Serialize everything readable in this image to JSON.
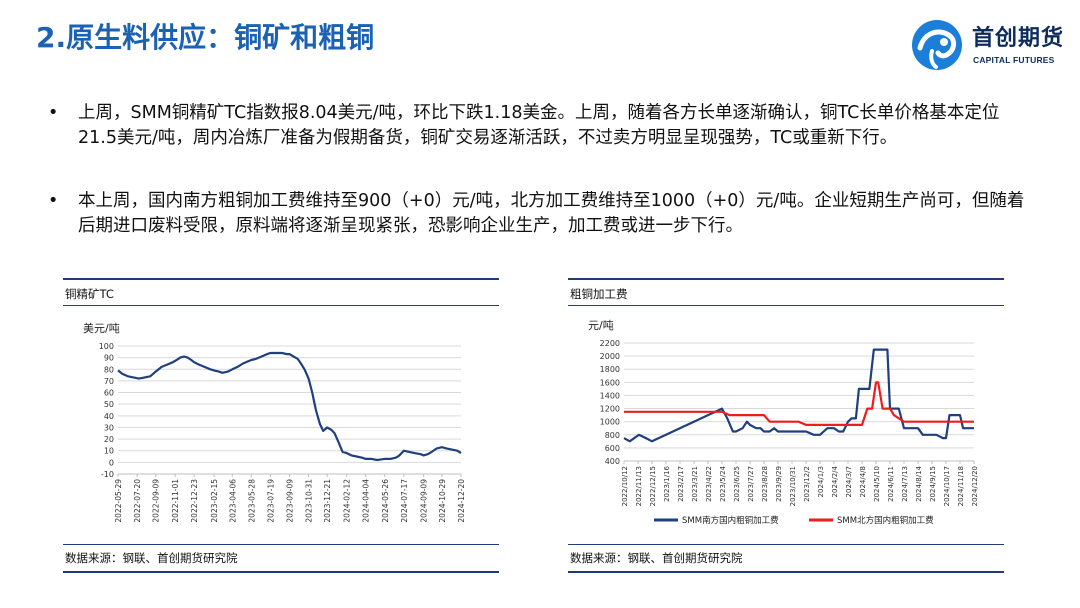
{
  "header": {
    "title": "2.原生料供应：铜矿和粗铜",
    "logo_cn": "首创期货",
    "logo_en": "CAPITAL FUTURES"
  },
  "bullets": [
    {
      "marker": "•",
      "text": "上周，SMM铜精矿TC指数报8.04美元/吨，环比下跌1.18美金。上周，随着各方长单逐渐确认，铜TC长单价格基本定位21.5美元/吨，周内冶炼厂准备为假期备货，铜矿交易逐渐活跃，不过卖方明显呈现强势，TC或重新下行。"
    },
    {
      "marker": "•",
      "text": "本上周，国内南方粗铜加工费维持至900（+0）元/吨，北方加工费维持至1000（+0）元/吨。企业短期生产尚可，但随着后期进口废料受限，原料端将逐渐呈现紧张，恐影响企业生产，加工费或进一步下行。"
    }
  ],
  "panels": {
    "left": {
      "title": "铜精矿TC",
      "source": "数据来源：钢联、首创期货研究院"
    },
    "right": {
      "title": "粗铜加工费",
      "source": "数据来源：钢联、首创期货研究院"
    }
  },
  "colors": {
    "title_blue": "#1b61b4",
    "rule_navy": "#1f3b7a",
    "series_navy": "#1f3f7f",
    "series_red": "#ee1c1c",
    "logo_blue": "#1b7fd9"
  },
  "chart_data": [
    {
      "type": "line",
      "title": "铜精矿TC",
      "ylabel": "美元/吨",
      "ylim": [
        -10,
        100
      ],
      "yticks": [
        -10,
        0,
        10,
        20,
        30,
        40,
        50,
        60,
        70,
        80,
        90,
        100
      ],
      "xlim": [
        "2022-05-29",
        "2024-12-20"
      ],
      "xticks": [
        "2022-05-29",
        "2022-07-20",
        "2022-09-09",
        "2022-11-01",
        "2022-12-23",
        "2023-02-15",
        "2023-04-06",
        "2023-05-28",
        "2023-07-19",
        "2023-09-09",
        "2023-10-31",
        "2023-12-21",
        "2024-02-12",
        "2024-04-04",
        "2024-05-26",
        "2024-07-17",
        "2024-09-09",
        "2024-10-29",
        "2024-12-20"
      ],
      "grid": true,
      "legend": "none",
      "series": [
        {
          "color": "#1f3f7f",
          "x": [
            "2022-05-29",
            "2022-06-10",
            "2022-06-25",
            "2022-07-10",
            "2022-07-25",
            "2022-08-10",
            "2022-08-25",
            "2022-09-09",
            "2022-09-25",
            "2022-10-10",
            "2022-10-25",
            "2022-11-05",
            "2022-11-15",
            "2022-11-25",
            "2022-12-05",
            "2022-12-15",
            "2022-12-23",
            "2023-01-05",
            "2023-01-20",
            "2023-02-05",
            "2023-02-15",
            "2023-02-28",
            "2023-03-10",
            "2023-03-25",
            "2023-04-06",
            "2023-04-20",
            "2023-05-05",
            "2023-05-20",
            "2023-05-28",
            "2023-06-10",
            "2023-06-25",
            "2023-07-10",
            "2023-07-19",
            "2023-08-05",
            "2023-08-20",
            "2023-09-01",
            "2023-09-09",
            "2023-09-20",
            "2023-10-01",
            "2023-10-10",
            "2023-10-20",
            "2023-10-31",
            "2023-11-10",
            "2023-11-20",
            "2023-12-01",
            "2023-12-10",
            "2023-12-21",
            "2024-01-01",
            "2024-01-10",
            "2024-01-20",
            "2024-02-01",
            "2024-02-12",
            "2024-02-25",
            "2024-03-10",
            "2024-03-25",
            "2024-04-04",
            "2024-04-20",
            "2024-05-05",
            "2024-05-26",
            "2024-06-10",
            "2024-06-25",
            "2024-07-05",
            "2024-07-17",
            "2024-08-01",
            "2024-08-15",
            "2024-09-01",
            "2024-09-09",
            "2024-09-20",
            "2024-10-01",
            "2024-10-15",
            "2024-10-29",
            "2024-11-10",
            "2024-11-25",
            "2024-12-10",
            "2024-12-20"
          ],
          "y": [
            79,
            76,
            74,
            73,
            72,
            73,
            74,
            78,
            82,
            84,
            86,
            88,
            90,
            91,
            90,
            88,
            86,
            84,
            82,
            80,
            79,
            78,
            77,
            78,
            80,
            82,
            85,
            87,
            88,
            89,
            91,
            93,
            94,
            94,
            94,
            93,
            93,
            91,
            89,
            85,
            80,
            72,
            60,
            45,
            33,
            27,
            30,
            28,
            25,
            18,
            9,
            8,
            6,
            5,
            4,
            3,
            3,
            2,
            3,
            3,
            4,
            6,
            10,
            9,
            8,
            7,
            6,
            7,
            9,
            12,
            13,
            12,
            11,
            10,
            8
          ]
        }
      ]
    },
    {
      "type": "line",
      "title": "粗铜加工费",
      "ylabel": "元/吨",
      "ylim": [
        400,
        2200
      ],
      "yticks": [
        400,
        600,
        800,
        1000,
        1200,
        1400,
        1600,
        1800,
        2000,
        2200
      ],
      "xlim": [
        "2022-10-12",
        "2024-12-20"
      ],
      "xticks": [
        "2022/10/12",
        "2022/11/13",
        "2022/12/15",
        "2023/1/16",
        "2023/2/17",
        "2023/3/21",
        "2023/4/22",
        "2023/5/24",
        "2023/6/25",
        "2023/7/27",
        "2023/8/28",
        "2023/9/29",
        "2023/10/31",
        "2023/12/2",
        "2024/1/3",
        "2024/2/4",
        "2024/3/7",
        "2024/4/8",
        "2024/5/10",
        "2024/6/11",
        "2024/7/13",
        "2024/8/14",
        "2024/9/15",
        "2024/10/17",
        "2024/11/18",
        "2024/12/20"
      ],
      "grid": true,
      "legend": "bottom",
      "series": [
        {
          "name": "SMM南方国内粗铜加工费",
          "color": "#1f3f7f",
          "x": [
            "2022-10-12",
            "2022-10-25",
            "2022-11-15",
            "2022-12-01",
            "2022-12-15",
            "2023-05-24",
            "2023-06-05",
            "2023-06-18",
            "2023-06-25",
            "2023-07-10",
            "2023-07-20",
            "2023-07-27",
            "2023-08-10",
            "2023-08-20",
            "2023-08-28",
            "2023-09-10",
            "2023-09-20",
            "2023-09-29",
            "2023-10-10",
            "2023-10-31",
            "2023-11-15",
            "2023-12-02",
            "2023-12-20",
            "2024-01-03",
            "2024-01-20",
            "2024-02-04",
            "2024-02-15",
            "2024-02-25",
            "2024-03-07",
            "2024-03-15",
            "2024-03-25",
            "2024-04-01",
            "2024-04-08",
            "2024-04-15",
            "2024-04-25",
            "2024-05-05",
            "2024-05-12",
            "2024-05-20",
            "2024-06-05",
            "2024-06-11",
            "2024-06-20",
            "2024-07-01",
            "2024-07-13",
            "2024-07-20",
            "2024-08-14",
            "2024-08-25",
            "2024-09-15",
            "2024-09-25",
            "2024-10-10",
            "2024-10-17",
            "2024-10-25",
            "2024-11-18",
            "2024-11-25",
            "2024-12-20"
          ],
          "y": [
            750,
            700,
            800,
            750,
            700,
            1200,
            1050,
            850,
            850,
            900,
            1000,
            950,
            900,
            900,
            850,
            850,
            900,
            850,
            850,
            850,
            850,
            850,
            800,
            800,
            900,
            900,
            850,
            850,
            1000,
            1050,
            1050,
            1500,
            1500,
            1500,
            1500,
            2100,
            2100,
            2100,
            2100,
            1200,
            1200,
            1200,
            900,
            900,
            900,
            800,
            800,
            800,
            750,
            750,
            1100,
            1100,
            900,
            900
          ]
        },
        {
          "name": "SMM北方国内粗铜加工费",
          "color": "#ee1c1c",
          "x": [
            "2022-10-12",
            "2023-05-24",
            "2023-06-10",
            "2023-08-28",
            "2023-09-10",
            "2023-11-15",
            "2023-12-02",
            "2024-03-07",
            "2024-04-08",
            "2024-04-20",
            "2024-05-01",
            "2024-05-10",
            "2024-05-15",
            "2024-05-25",
            "2024-06-11",
            "2024-06-20",
            "2024-07-13",
            "2024-08-14",
            "2024-09-15",
            "2024-10-17",
            "2024-11-18",
            "2024-12-20"
          ],
          "y": [
            1150,
            1150,
            1100,
            1100,
            1000,
            1000,
            950,
            950,
            950,
            1200,
            1200,
            1600,
            1600,
            1200,
            1200,
            1100,
            1000,
            1000,
            1000,
            1000,
            1000,
            1000
          ]
        }
      ]
    }
  ]
}
